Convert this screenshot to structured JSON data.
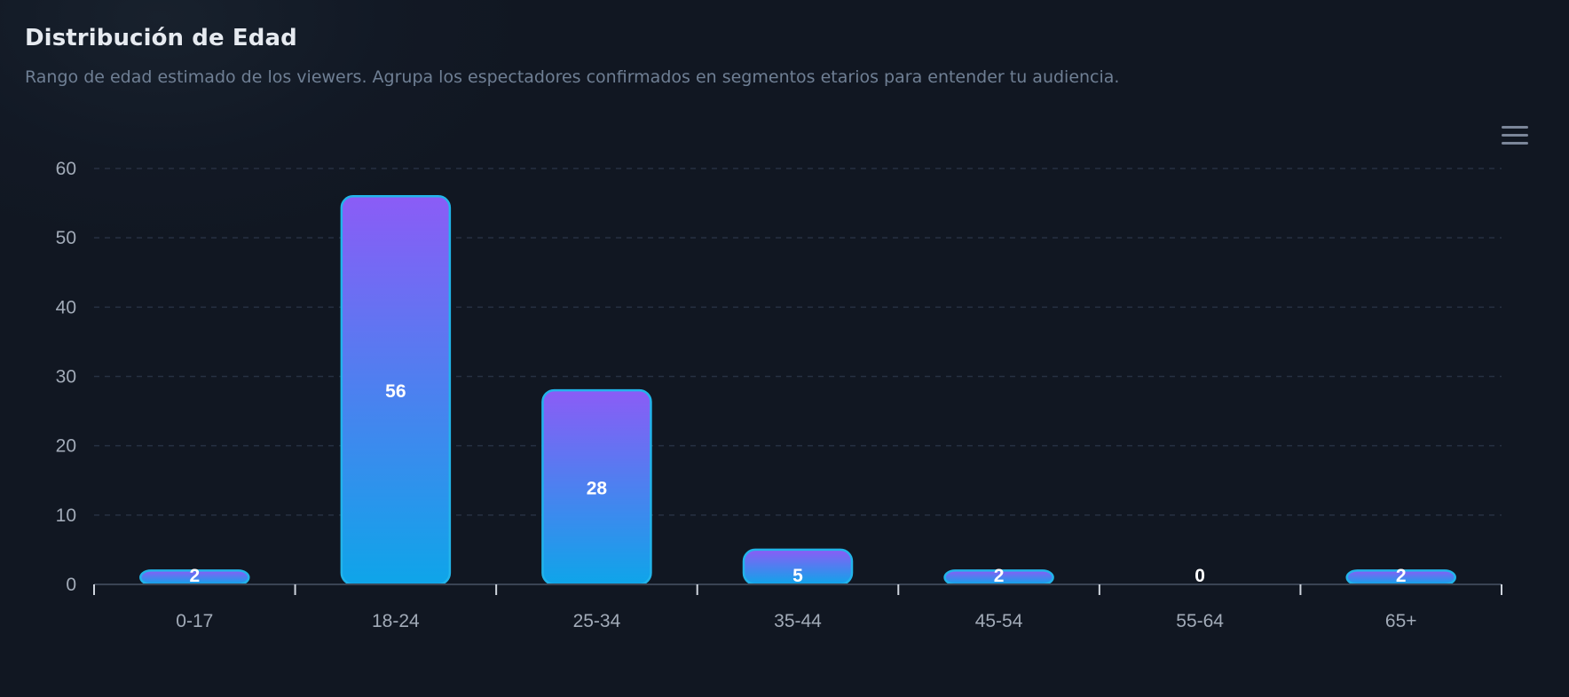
{
  "card": {
    "title": "Distribución de Edad",
    "subtitle": "Rango de edad estimado de los viewers. Agrupa los espectadores confirmados en segmentos etarios para entender tu audiencia."
  },
  "toolbar": {
    "menu_icon": "hamburger-menu-icon"
  },
  "colors": {
    "bar_top": "#8b5cf6",
    "bar_bottom": "#0ea5e9",
    "bar_border": "#22b4ea",
    "grid": "#273142",
    "axis": "#3a4454"
  },
  "chart_data": {
    "type": "bar",
    "categories": [
      "0-17",
      "18-24",
      "25-34",
      "35-44",
      "45-54",
      "55-64",
      "65+"
    ],
    "values": [
      2,
      56,
      28,
      5,
      2,
      0,
      2
    ],
    "title": "Distribución de Edad",
    "xlabel": "",
    "ylabel": "",
    "ylim": [
      0,
      60
    ],
    "yticks": [
      0,
      10,
      20,
      30,
      40,
      50,
      60
    ],
    "grid": true,
    "data_labels": true
  }
}
